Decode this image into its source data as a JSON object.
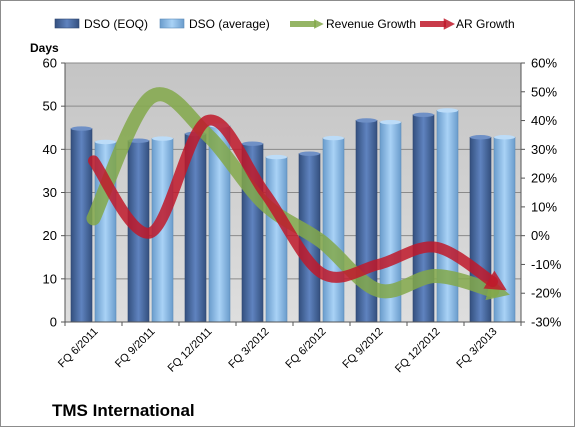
{
  "chart_data": {
    "type": "bar",
    "title": "TMS International",
    "ylabel": "Days",
    "categories": [
      "FQ 6/2011",
      "FQ 9/2011",
      "FQ 12/2011",
      "FQ 3/2012",
      "FQ 6/2012",
      "FQ 9/2012",
      "FQ 12/2012",
      "FQ 3/2013"
    ],
    "ylim": [
      0,
      60
    ],
    "y_ticks": [
      "0",
      "10",
      "20",
      "30",
      "40",
      "50",
      "60"
    ],
    "y2lim": [
      -30,
      60
    ],
    "y2_ticks": [
      "-30%",
      "-20%",
      "-10%",
      "0%",
      "10%",
      "20%",
      "30%",
      "40%",
      "50%",
      "60%"
    ],
    "grid": true,
    "legend_position": "top",
    "series": [
      {
        "name": "DSO (EOQ)",
        "kind": "bar",
        "axis": "left",
        "color": "#4f6fa8",
        "values": [
          44.8,
          42.0,
          43.6,
          41.3,
          39.0,
          46.7,
          48.0,
          42.8
        ]
      },
      {
        "name": "DSO (average)",
        "kind": "bar",
        "axis": "left",
        "color": "#8fbce8",
        "values": [
          41.7,
          42.5,
          45.5,
          38.2,
          42.6,
          46.3,
          49.0,
          42.8
        ]
      },
      {
        "name": "Revenue Growth",
        "kind": "line",
        "axis": "right",
        "color": "#82a84a",
        "values": [
          6,
          48,
          35,
          11,
          -2,
          -19,
          -14,
          -19
        ]
      },
      {
        "name": "AR Growth",
        "kind": "line",
        "axis": "right",
        "color": "#c0192a",
        "values": [
          26,
          1,
          40,
          15,
          -13,
          -10,
          -4,
          -16
        ]
      }
    ]
  }
}
